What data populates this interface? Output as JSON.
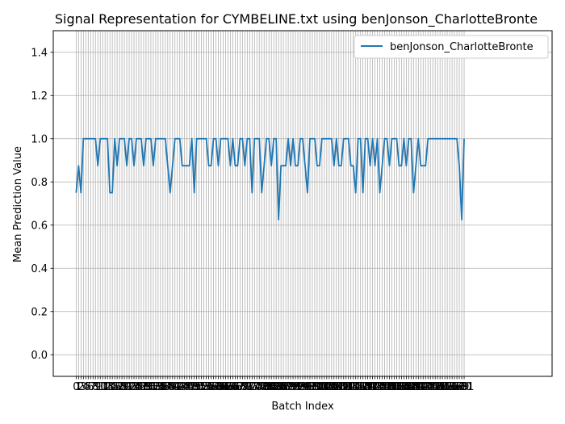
{
  "chart_data": {
    "type": "line",
    "title": "Signal Representation for CYMBELINE.txt using benJonson_CharlotteBronte",
    "xlabel": "Batch Index",
    "ylabel": "Mean Prediction Value",
    "ylim": [
      -0.1,
      1.5
    ],
    "xlim": [
      -9.5,
      197.5
    ],
    "yticks": [
      "0.0",
      "0.2",
      "0.4",
      "0.6",
      "0.8",
      "1.0",
      "1.2",
      "1.4"
    ],
    "x_tick_every": 1,
    "grid": true,
    "legend_position": "top-right",
    "series": [
      {
        "name": "benJonson_CharlotteBronte",
        "color": "#1f77b4",
        "values": [
          0.75,
          0.875,
          0.75,
          1.0,
          1.0,
          1.0,
          1.0,
          1.0,
          1.0,
          0.875,
          1.0,
          1.0,
          1.0,
          1.0,
          0.75,
          0.75,
          1.0,
          0.875,
          1.0,
          1.0,
          1.0,
          0.875,
          1.0,
          1.0,
          0.875,
          1.0,
          1.0,
          1.0,
          0.875,
          1.0,
          1.0,
          1.0,
          0.875,
          1.0,
          1.0,
          1.0,
          1.0,
          1.0,
          0.875,
          0.75,
          0.875,
          1.0,
          1.0,
          1.0,
          0.875,
          0.875,
          0.875,
          0.875,
          1.0,
          0.75,
          1.0,
          1.0,
          1.0,
          1.0,
          1.0,
          0.875,
          0.875,
          1.0,
          1.0,
          0.875,
          1.0,
          1.0,
          1.0,
          1.0,
          0.875,
          1.0,
          0.875,
          0.875,
          1.0,
          1.0,
          0.875,
          1.0,
          1.0,
          0.75,
          1.0,
          1.0,
          1.0,
          0.75,
          0.875,
          1.0,
          1.0,
          0.875,
          1.0,
          1.0,
          0.625,
          0.875,
          0.875,
          0.875,
          1.0,
          0.875,
          1.0,
          0.875,
          0.875,
          1.0,
          1.0,
          0.875,
          0.75,
          1.0,
          1.0,
          1.0,
          0.875,
          0.875,
          1.0,
          1.0,
          1.0,
          1.0,
          1.0,
          0.875,
          1.0,
          0.875,
          0.875,
          1.0,
          1.0,
          1.0,
          0.875,
          0.875,
          0.75,
          1.0,
          1.0,
          0.75,
          1.0,
          1.0,
          0.875,
          1.0,
          0.875,
          1.0,
          0.75,
          0.875,
          1.0,
          1.0,
          0.875,
          1.0,
          1.0,
          1.0,
          0.875,
          0.875,
          1.0,
          0.875,
          1.0,
          1.0,
          0.75,
          0.875,
          1.0,
          0.875,
          0.875,
          0.875,
          1.0,
          1.0,
          1.0,
          1.0,
          1.0,
          1.0,
          1.0,
          1.0,
          1.0,
          1.0,
          1.0,
          1.0,
          1.0,
          0.875,
          0.625,
          1.0
        ]
      }
    ]
  }
}
